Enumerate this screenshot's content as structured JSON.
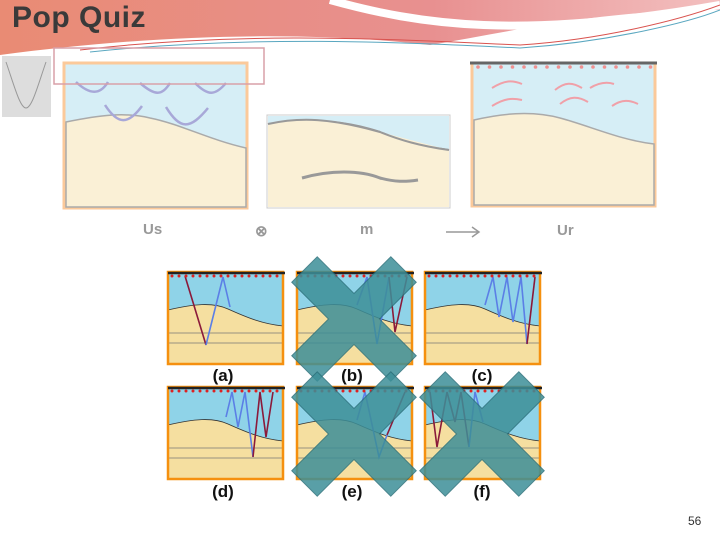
{
  "slide": {
    "title": "Pop Quiz",
    "page_number": "56",
    "top_figure": {
      "labels": {
        "us": "Us",
        "convolve": "⊗",
        "m": "m",
        "arrow": "⟶",
        "ur": "Ur"
      }
    },
    "panels": [
      {
        "label": "(a)",
        "crossed": false
      },
      {
        "label": "(b)",
        "crossed": true
      },
      {
        "label": "(c)",
        "crossed": false
      },
      {
        "label": "(d)",
        "crossed": false
      },
      {
        "label": "(e)",
        "crossed": true
      },
      {
        "label": "(f)",
        "crossed": true
      }
    ],
    "colors": {
      "water": "#8fd3e8",
      "sediment": "#f5dfa0",
      "frame": "#f5900f",
      "cross": "#3d8f98",
      "header": "#e07a6a"
    }
  }
}
